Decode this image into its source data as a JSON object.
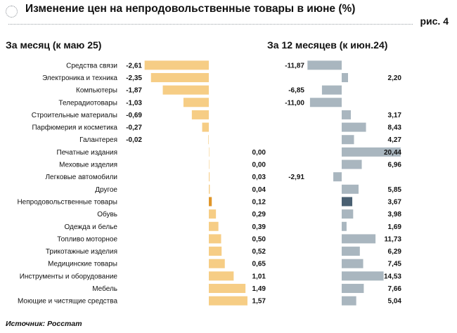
{
  "title": "Изменение цен на непродовольственные товары в июне (%)",
  "figure_label": "рис. 4",
  "source": "Источник: Росстат",
  "chart_data": {
    "type": "bar",
    "orientation": "horizontal",
    "categories": [
      "Средства связи",
      "Электроника и техника",
      "Компьютеры",
      "Телерадиотовары",
      "Строительные материалы",
      "Парфюмерия и косметика",
      "Галантерея",
      "Печатные издания",
      "Меховые изделия",
      "Легковые автомобили",
      "Другое",
      "Непродовольственные товары",
      "Обувь",
      "Одежда и белье",
      "Топливо моторное",
      "Трикотажные изделия",
      "Медицинские товары",
      "Инструменты и оборудование",
      "Мебель",
      "Моющие и чистящие средства"
    ],
    "highlight_category": "Непродовольственные товары",
    "series": [
      {
        "name": "За месяц (к маю 25)",
        "values": [
          -2.61,
          -2.35,
          -1.87,
          -1.03,
          -0.69,
          -0.27,
          -0.02,
          0.0,
          0.0,
          0.03,
          0.04,
          0.12,
          0.29,
          0.39,
          0.5,
          0.52,
          0.65,
          1.01,
          1.49,
          1.57
        ],
        "labels": [
          "-2,61",
          "-2,35",
          "-1,87",
          "-1,03",
          "-0,69",
          "-0,27",
          "-0,02",
          "0,00",
          "0,00",
          "0,03",
          "0,04",
          "0,12",
          "0,29",
          "0,39",
          "0,50",
          "0,52",
          "0,65",
          "1,01",
          "1,49",
          "1,57"
        ],
        "color": "#f6cd85",
        "highlight_color": "#e0962a"
      },
      {
        "name": "За 12 месяцев (к июн.24)",
        "values": [
          -11.87,
          2.2,
          -6.85,
          -11.0,
          3.17,
          8.43,
          4.27,
          20.44,
          6.96,
          -2.91,
          5.85,
          3.67,
          3.98,
          1.69,
          11.73,
          6.29,
          7.45,
          14.53,
          7.66,
          5.04
        ],
        "labels": [
          "-11,87",
          "2,20",
          "-6,85",
          "-11,00",
          "3,17",
          "8,43",
          "4,27",
          "20,44",
          "6,96",
          "-2,91",
          "5,85",
          "3,67",
          "3,98",
          "1,69",
          "11,73",
          "6,29",
          "7,45",
          "14,53",
          "7,66",
          "5,04"
        ],
        "color": "#a9b6bf",
        "highlight_color": "#4a6072"
      }
    ]
  }
}
